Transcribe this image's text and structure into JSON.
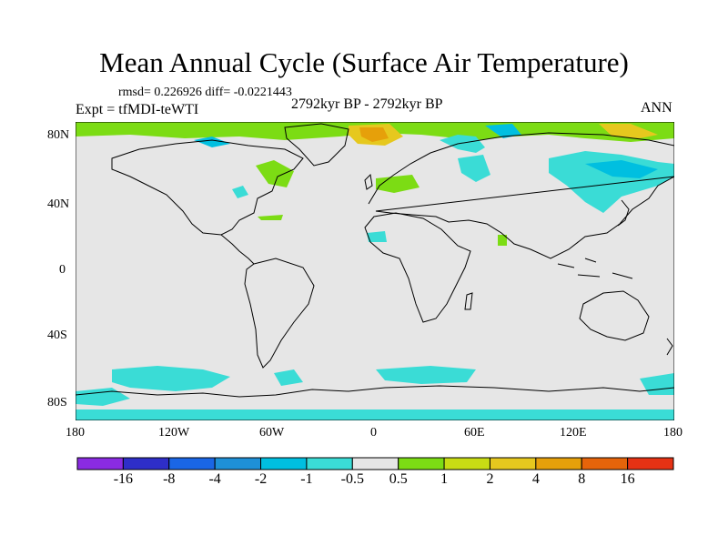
{
  "title": "Mean Annual Cycle (Surface Air Temperature)",
  "stats": "rmsd= 0.226926 diff= -0.0221443",
  "experiment": "Expt = tfMDI-teWTI",
  "period": "2792kyr BP - 2792kyr BP",
  "season": "ANN",
  "colors": {
    "land_background": "#e6e6e6",
    "coastline": "#000000"
  },
  "lat_labels": [
    "80N",
    "40N",
    "0",
    "40S",
    "80S"
  ],
  "lon_labels": [
    "180",
    "120W",
    "60W",
    "0",
    "60E",
    "120E",
    "180"
  ],
  "colorbar": {
    "labels": [
      "-16",
      "-8",
      "-4",
      "-2",
      "-1",
      "-0.5",
      "0.5",
      "1",
      "2",
      "4",
      "8",
      "16"
    ],
    "colors": [
      "#8a2be2",
      "#2e2ec8",
      "#1a66e6",
      "#1e90d8",
      "#00bfe0",
      "#3adcd6",
      "#e6e6e6",
      "#7cdc14",
      "#c8dc14",
      "#e6c81e",
      "#e6a00a",
      "#e6640a",
      "#e63214"
    ]
  },
  "map_regions": [
    {
      "name": "arctic-canada-green",
      "class": "1",
      "color": "#7cdc14"
    },
    {
      "name": "arctic-orange",
      "class": "4",
      "color": "#e6c81e"
    },
    {
      "name": "siberia-cyan",
      "class": "-1",
      "color": "#00bfe0"
    },
    {
      "name": "antarctic-cyan",
      "class": "-1",
      "color": "#00bfe0"
    }
  ]
}
